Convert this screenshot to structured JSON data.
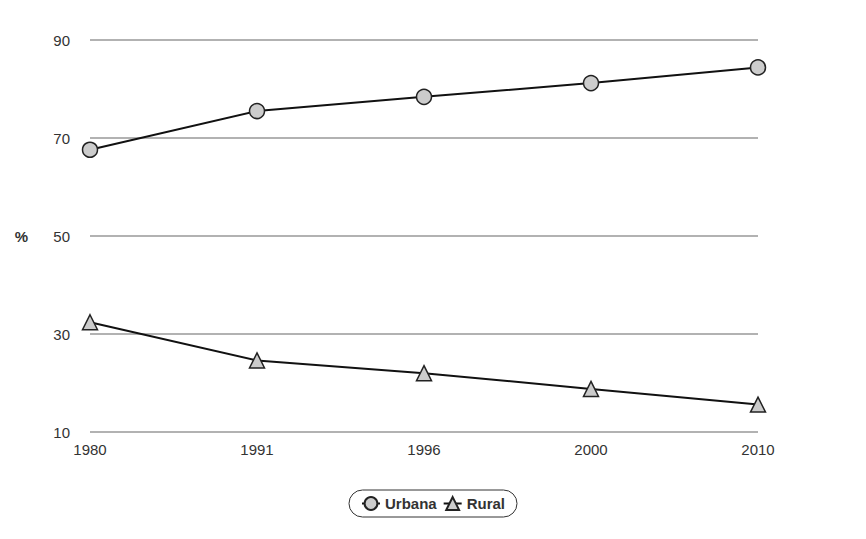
{
  "chart_data": {
    "type": "line",
    "categories": [
      "1980",
      "1991",
      "1996",
      "2000",
      "2010"
    ],
    "series": [
      {
        "name": "Urbana",
        "color": "#cccccc",
        "marker": "circle",
        "values": [
          67.6,
          75.5,
          78.4,
          81.2,
          84.4
        ]
      },
      {
        "name": "Rural",
        "color": "#cccccc",
        "marker": "triangle",
        "values": [
          32.4,
          24.6,
          22.0,
          18.8,
          15.6
        ]
      }
    ],
    "y_label": "%",
    "ylim": [
      10,
      90
    ],
    "yticks": [
      10,
      30,
      50,
      70,
      90
    ],
    "grid": true,
    "legend": "bottom"
  }
}
